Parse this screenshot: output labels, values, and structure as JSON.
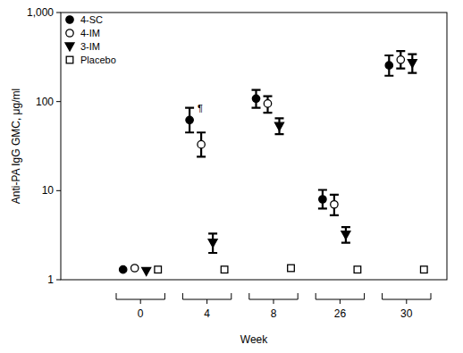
{
  "chart_data": {
    "type": "scatter",
    "x_label": "Week",
    "y_label": "Anti-PA IgG GMC, μg/ml",
    "categories": [
      "0",
      "4",
      "8",
      "26",
      "30"
    ],
    "log": "y",
    "ylim": [
      1,
      1000
    ],
    "yticks": [
      1,
      10,
      100,
      {
        "value": 1000,
        "label": "1,000"
      }
    ],
    "legend": "upper left",
    "grid": false,
    "series": [
      {
        "name": "4-SC",
        "color": "#000000",
        "marker": "circle",
        "values": [
          1.3,
          62,
          108,
          8.0,
          255
        ],
        "ci_low": [
          null,
          45,
          85,
          6.3,
          195
        ],
        "ci_high": [
          null,
          85,
          135,
          10.2,
          330
        ]
      },
      {
        "name": "4-IM",
        "color": "#000000",
        "marker": "open-circle",
        "values": [
          1.35,
          33,
          95,
          7.0,
          295
        ],
        "ci_low": [
          null,
          24,
          75,
          5.3,
          235
        ],
        "ci_high": [
          null,
          45,
          115,
          9.0,
          370
        ]
      },
      {
        "name": "3-IM",
        "color": "#000000",
        "marker": "triangle-down",
        "values": [
          1.25,
          2.6,
          53,
          3.2,
          270
        ],
        "ci_low": [
          null,
          2.0,
          43,
          2.6,
          210
        ],
        "ci_high": [
          null,
          3.3,
          65,
          3.9,
          340
        ]
      },
      {
        "name": "Placebo",
        "color": "#000000",
        "marker": "open-square",
        "values": [
          1.3,
          1.3,
          1.35,
          1.3,
          1.3
        ],
        "ci_low": [
          null,
          null,
          null,
          null,
          null
        ],
        "ci_high": [
          null,
          null,
          null,
          null,
          null
        ]
      }
    ],
    "annotations": [
      {
        "text": "¶",
        "series": "4-SC",
        "category": "4"
      }
    ]
  }
}
